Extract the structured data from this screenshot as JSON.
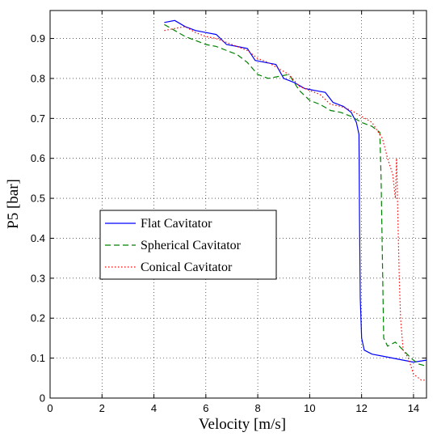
{
  "chart_data": {
    "type": "line",
    "title": "",
    "xlabel": "Velocity    [m/s]",
    "ylabel": "P5    [bar]",
    "xlim": [
      0,
      14.5
    ],
    "ylim": [
      0,
      0.97
    ],
    "xticks": [
      0,
      2,
      4,
      6,
      8,
      10,
      12,
      14
    ],
    "yticks": [
      0,
      0.1,
      0.2,
      0.3,
      0.4,
      0.5,
      0.6,
      0.7,
      0.8,
      0.9
    ],
    "xtick_labels": [
      "0",
      "2",
      "4",
      "6",
      "8",
      "10",
      "12",
      "14"
    ],
    "ytick_labels": [
      "0",
      "0.1",
      "0.2",
      "0.3",
      "0.4",
      "0.5",
      "0.6",
      "0.7",
      "0.8",
      "0.9"
    ],
    "grid": true,
    "legend_position": "center-left",
    "series": [
      {
        "name": "Flat Cavitator",
        "color": "#0000ff",
        "style": "solid",
        "points": [
          [
            4.4,
            0.94
          ],
          [
            4.8,
            0.945
          ],
          [
            5.2,
            0.93
          ],
          [
            5.6,
            0.92
          ],
          [
            6.0,
            0.915
          ],
          [
            6.4,
            0.91
          ],
          [
            6.8,
            0.885
          ],
          [
            7.2,
            0.88
          ],
          [
            7.6,
            0.875
          ],
          [
            7.9,
            0.845
          ],
          [
            8.3,
            0.84
          ],
          [
            8.7,
            0.835
          ],
          [
            9.0,
            0.8
          ],
          [
            9.4,
            0.79
          ],
          [
            9.8,
            0.775
          ],
          [
            10.2,
            0.77
          ],
          [
            10.6,
            0.765
          ],
          [
            10.9,
            0.74
          ],
          [
            11.3,
            0.73
          ],
          [
            11.6,
            0.715
          ],
          [
            11.8,
            0.69
          ],
          [
            11.9,
            0.66
          ],
          [
            11.92,
            0.45
          ],
          [
            11.95,
            0.25
          ],
          [
            12.0,
            0.15
          ],
          [
            12.1,
            0.12
          ],
          [
            12.4,
            0.11
          ],
          [
            12.8,
            0.105
          ],
          [
            13.2,
            0.1
          ],
          [
            13.6,
            0.095
          ],
          [
            14.0,
            0.09
          ],
          [
            14.5,
            0.095
          ]
        ]
      },
      {
        "name": "Spherical Cavitator",
        "color": "#008000",
        "style": "dashed",
        "points": [
          [
            4.4,
            0.935
          ],
          [
            4.8,
            0.92
          ],
          [
            5.2,
            0.905
          ],
          [
            5.6,
            0.895
          ],
          [
            6.0,
            0.885
          ],
          [
            6.4,
            0.88
          ],
          [
            6.8,
            0.87
          ],
          [
            7.2,
            0.86
          ],
          [
            7.6,
            0.84
          ],
          [
            8.0,
            0.81
          ],
          [
            8.4,
            0.8
          ],
          [
            8.8,
            0.805
          ],
          [
            9.2,
            0.81
          ],
          [
            9.6,
            0.77
          ],
          [
            10.0,
            0.745
          ],
          [
            10.4,
            0.735
          ],
          [
            10.8,
            0.72
          ],
          [
            11.2,
            0.715
          ],
          [
            11.6,
            0.705
          ],
          [
            12.0,
            0.69
          ],
          [
            12.4,
            0.68
          ],
          [
            12.7,
            0.665
          ],
          [
            12.75,
            0.55
          ],
          [
            12.8,
            0.35
          ],
          [
            12.85,
            0.15
          ],
          [
            13.0,
            0.13
          ],
          [
            13.3,
            0.14
          ],
          [
            13.6,
            0.12
          ],
          [
            13.9,
            0.1
          ],
          [
            14.2,
            0.085
          ],
          [
            14.5,
            0.08
          ]
        ]
      },
      {
        "name": "Conical Cavitator",
        "color": "#ff0000",
        "style": "dotted",
        "points": [
          [
            4.4,
            0.92
          ],
          [
            4.8,
            0.925
          ],
          [
            5.2,
            0.93
          ],
          [
            5.6,
            0.915
          ],
          [
            6.0,
            0.905
          ],
          [
            6.4,
            0.9
          ],
          [
            6.8,
            0.89
          ],
          [
            7.2,
            0.88
          ],
          [
            7.6,
            0.87
          ],
          [
            8.0,
            0.85
          ],
          [
            8.4,
            0.84
          ],
          [
            8.8,
            0.825
          ],
          [
            9.2,
            0.81
          ],
          [
            9.6,
            0.78
          ],
          [
            10.0,
            0.77
          ],
          [
            10.4,
            0.76
          ],
          [
            10.8,
            0.735
          ],
          [
            11.2,
            0.73
          ],
          [
            11.6,
            0.72
          ],
          [
            12.0,
            0.705
          ],
          [
            12.4,
            0.69
          ],
          [
            12.8,
            0.65
          ],
          [
            13.0,
            0.6
          ],
          [
            13.2,
            0.56
          ],
          [
            13.3,
            0.5
          ],
          [
            13.35,
            0.6
          ],
          [
            13.4,
            0.45
          ],
          [
            13.45,
            0.3
          ],
          [
            13.5,
            0.2
          ],
          [
            13.6,
            0.12
          ],
          [
            13.8,
            0.1
          ],
          [
            14.0,
            0.06
          ],
          [
            14.3,
            0.045
          ],
          [
            14.5,
            0.045
          ]
        ]
      }
    ]
  }
}
